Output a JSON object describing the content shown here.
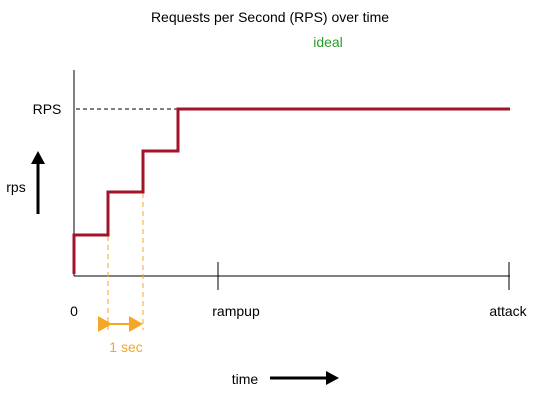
{
  "title": "Requests per Second (RPS) over time",
  "subtitle": "ideal",
  "labels": {
    "rps_level": "RPS",
    "y_axis": "rps",
    "origin": "0",
    "rampup": "rampup",
    "attack": "attack",
    "x_axis": "time",
    "step_duration": "1 sec"
  },
  "colors": {
    "series": "#a3142a",
    "subtitle": "#2a9a2a",
    "step_marker": "#f5a623",
    "axis": "#000000",
    "dashed_reference": "#000000"
  },
  "icons": {
    "y_direction": "arrow-up-icon",
    "x_direction": "arrow-right-icon"
  }
}
